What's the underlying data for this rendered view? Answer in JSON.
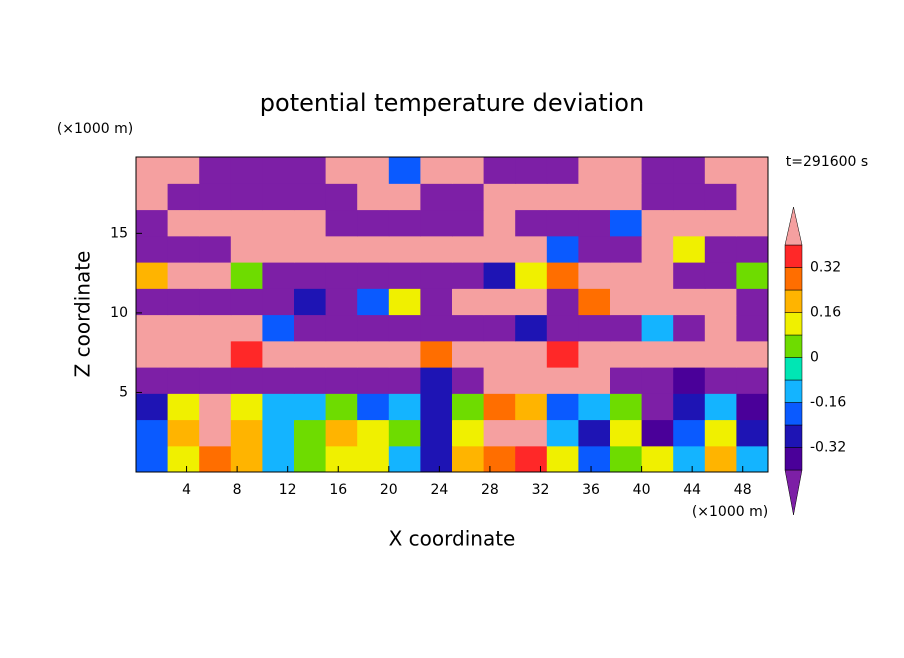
{
  "chart_data": {
    "type": "contour",
    "title": "potential temperature deviation",
    "x_label": "X coordinate",
    "y_label": "Z coordinate",
    "x_unit": "(×1000 m)",
    "y_unit": "(×1000 m)",
    "time_label": "t=291600 s",
    "xlim": [
      0,
      50
    ],
    "ylim": [
      0,
      19.8
    ],
    "xticks": [
      4,
      8,
      12,
      16,
      20,
      24,
      28,
      32,
      36,
      40,
      44,
      48
    ],
    "yticks": [
      5,
      10,
      15
    ],
    "x": [
      1.25,
      3.75,
      6.25,
      8.75,
      11.25,
      13.75,
      16.25,
      18.75,
      21.25,
      23.75,
      26.25,
      28.75,
      31.25,
      33.75,
      36.25,
      38.75,
      41.25,
      43.75,
      46.25,
      48.75
    ],
    "y": [
      0.825,
      2.475,
      4.125,
      5.775,
      7.425,
      9.075,
      10.725,
      12.375,
      14.025,
      15.675,
      17.325,
      18.975
    ],
    "z": [
      [
        -0.2,
        0.1,
        0.3,
        0.2,
        -0.1,
        0.0,
        0.1,
        0.15,
        -0.1,
        -0.25,
        0.2,
        0.3,
        0.35,
        0.1,
        -0.2,
        0.0,
        0.15,
        -0.1,
        0.2,
        -0.15
      ],
      [
        -0.2,
        0.2,
        0.45,
        0.2,
        -0.1,
        0.05,
        0.2,
        0.1,
        0.0,
        -0.3,
        0.1,
        0.4,
        0.45,
        -0.1,
        -0.3,
        0.1,
        -0.35,
        -0.2,
        0.1,
        -0.3
      ],
      [
        -0.25,
        0.1,
        0.4,
        0.1,
        -0.15,
        -0.1,
        0.0,
        -0.2,
        -0.1,
        -0.25,
        0.05,
        0.3,
        0.2,
        -0.2,
        -0.1,
        0.0,
        -0.5,
        -0.25,
        -0.1,
        -0.35
      ],
      [
        -0.5,
        -0.5,
        -0.45,
        -0.5,
        -0.5,
        -0.45,
        -0.5,
        -0.5,
        -0.5,
        -0.3,
        -0.45,
        0.45,
        0.5,
        0.5,
        0.5,
        -0.5,
        -0.5,
        -0.4,
        -0.5,
        -0.45
      ],
      [
        0.45,
        0.5,
        0.5,
        0.35,
        0.5,
        0.5,
        0.4,
        0.5,
        0.5,
        0.3,
        0.5,
        0.4,
        0.5,
        0.35,
        0.5,
        0.4,
        0.5,
        0.5,
        0.45,
        0.5
      ],
      [
        0.5,
        0.5,
        0.5,
        0.5,
        -0.2,
        -0.5,
        -0.5,
        -0.5,
        -0.5,
        -0.5,
        -0.5,
        -0.5,
        -0.3,
        -0.5,
        -0.5,
        -0.5,
        -0.1,
        -0.5,
        0.5,
        -0.5
      ],
      [
        -0.5,
        -0.5,
        -0.5,
        -0.5,
        -0.5,
        -0.3,
        -0.5,
        -0.2,
        0.1,
        -0.5,
        0.5,
        0.5,
        0.5,
        -0.5,
        0.3,
        0.5,
        0.5,
        0.5,
        0.5,
        -0.5
      ],
      [
        0.2,
        0.5,
        0.5,
        0.0,
        -0.5,
        -0.5,
        -0.5,
        -0.5,
        -0.5,
        -0.5,
        -0.5,
        -0.3,
        0.1,
        0.3,
        0.5,
        0.5,
        0.5,
        -0.5,
        -0.5,
        0.0
      ],
      [
        -0.5,
        -0.5,
        -0.5,
        0.5,
        0.5,
        0.5,
        0.5,
        0.5,
        0.5,
        0.5,
        0.5,
        0.5,
        0.5,
        -0.2,
        -0.5,
        -0.5,
        0.5,
        0.1,
        -0.5,
        -0.5
      ],
      [
        -0.5,
        0.5,
        0.5,
        0.5,
        0.5,
        0.5,
        -0.5,
        -0.5,
        -0.5,
        -0.5,
        -0.5,
        0.5,
        -0.5,
        -0.5,
        -0.5,
        -0.2,
        0.4,
        0.5,
        0.5,
        0.5
      ],
      [
        0.5,
        -0.5,
        -0.5,
        -0.5,
        -0.5,
        -0.5,
        -0.5,
        0.5,
        0.5,
        -0.5,
        -0.5,
        0.5,
        0.5,
        0.5,
        0.5,
        0.5,
        -0.5,
        -0.5,
        -0.5,
        0.5
      ],
      [
        0.5,
        0.5,
        -0.5,
        -0.5,
        -0.5,
        -0.5,
        0.5,
        0.5,
        -0.2,
        0.5,
        0.5,
        -0.5,
        -0.5,
        -0.5,
        0.5,
        0.5,
        -0.5,
        -0.5,
        0.5,
        0.5
      ]
    ],
    "levels": [
      -0.4,
      -0.32,
      -0.24,
      -0.16,
      -0.08,
      0,
      0.08,
      0.16,
      0.24,
      0.32,
      0.4
    ],
    "colors": [
      "#7d1fa6",
      "#4a0099",
      "#1e14b4",
      "#0a5aff",
      "#14b4ff",
      "#00e6b4",
      "#6edc00",
      "#f0f000",
      "#ffb400",
      "#ff6e00",
      "#ff2828",
      "#f5a0a0"
    ],
    "colorbar_ticks": [
      -0.32,
      -0.16,
      0,
      0.16,
      0.32
    ]
  }
}
